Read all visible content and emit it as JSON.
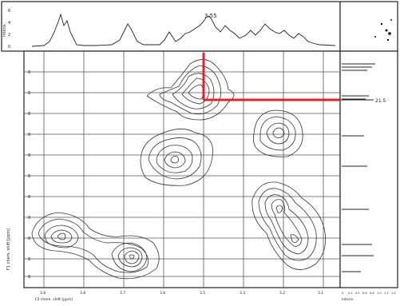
{
  "top_axis_label": "Intens.",
  "left_axis_label": "F1 chem. shift [ppm]",
  "bottom_axis_label": "F2 chem. shift [ppm]",
  "right_axis_label": "Intens.",
  "marker_x_value": "3.55",
  "marker_y_value": "21.5",
  "top_axis_ticks": [
    "6",
    "4",
    "2",
    "0"
  ],
  "left_tick_labels": [
    "8",
    "8",
    "8",
    "8",
    "8",
    "8",
    "8",
    "8",
    "8",
    "8",
    "8",
    "8"
  ],
  "bottom_tick_labels": [
    "3.8",
    "3.8",
    "3.7",
    "3.6",
    "3.5",
    "3.3",
    "3.2",
    "3.1"
  ],
  "right_bottom_ticks": [
    "0",
    "0.2",
    "0.4",
    "0.6",
    "0.8",
    "1.0",
    "1.2",
    "1.4"
  ],
  "colors": {
    "marker": "#e8202a",
    "ink": "#222222",
    "grid": "#555555"
  }
}
